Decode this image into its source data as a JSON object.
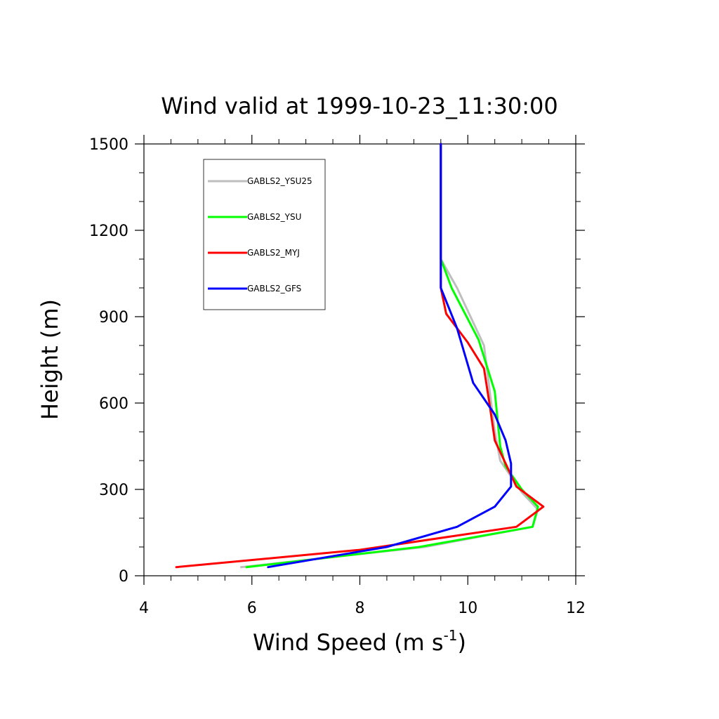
{
  "chart_data": {
    "type": "line",
    "title": "Wind valid at 1999-10-23_11:30:00",
    "xlabel": "Wind Speed (m s",
    "xlabel_superscript": "-1",
    "xlabel_suffix": ")",
    "ylabel": "Height (m)",
    "xlim": [
      4,
      12
    ],
    "ylim": [
      0,
      1500
    ],
    "x_ticks": [
      4,
      6,
      8,
      10,
      12
    ],
    "y_ticks": [
      0,
      300,
      600,
      900,
      1200,
      1500
    ],
    "x_tick_labels": [
      "4",
      "6",
      "8",
      "10",
      "12"
    ],
    "y_tick_labels": [
      "0",
      "300",
      "600",
      "900",
      "1200",
      "1500"
    ],
    "grid": false,
    "legend_position": "top-left",
    "series": [
      {
        "name": "GABLS2_YSU25",
        "color": "#bebebe",
        "points": [
          [
            5.8,
            30
          ],
          [
            9.2,
            100
          ],
          [
            11.2,
            170
          ],
          [
            11.3,
            230
          ],
          [
            11.0,
            290
          ],
          [
            10.6,
            400
          ],
          [
            10.5,
            500
          ],
          [
            10.4,
            650
          ],
          [
            10.3,
            800
          ],
          [
            9.8,
            1000
          ],
          [
            9.5,
            1100
          ],
          [
            9.5,
            1300
          ],
          [
            9.5,
            1500
          ]
        ]
      },
      {
        "name": "GABLS2_YSU",
        "color": "#00ff00",
        "points": [
          [
            5.9,
            30
          ],
          [
            9.1,
            100
          ],
          [
            11.2,
            170
          ],
          [
            11.3,
            240
          ],
          [
            11.0,
            300
          ],
          [
            10.7,
            380
          ],
          [
            10.6,
            450
          ],
          [
            10.5,
            640
          ],
          [
            10.2,
            820
          ],
          [
            9.7,
            1000
          ],
          [
            9.5,
            1100
          ],
          [
            9.5,
            1300
          ],
          [
            9.5,
            1500
          ]
        ]
      },
      {
        "name": "GABLS2_MYJ",
        "color": "#ff0000",
        "points": [
          [
            4.6,
            30
          ],
          [
            8.0,
            90
          ],
          [
            10.9,
            170
          ],
          [
            11.4,
            240
          ],
          [
            10.9,
            310
          ],
          [
            10.7,
            390
          ],
          [
            10.5,
            470
          ],
          [
            10.4,
            600
          ],
          [
            10.3,
            720
          ],
          [
            10.0,
            810
          ],
          [
            9.6,
            910
          ],
          [
            9.5,
            1000
          ],
          [
            9.5,
            1100
          ],
          [
            9.5,
            1300
          ],
          [
            9.5,
            1500
          ]
        ]
      },
      {
        "name": "GABLS2_GFS",
        "color": "#0000ff",
        "points": [
          [
            6.3,
            30
          ],
          [
            8.5,
            100
          ],
          [
            9.8,
            170
          ],
          [
            10.5,
            240
          ],
          [
            10.8,
            310
          ],
          [
            10.8,
            390
          ],
          [
            10.7,
            470
          ],
          [
            10.5,
            560
          ],
          [
            10.1,
            670
          ],
          [
            9.8,
            860
          ],
          [
            9.5,
            1000
          ],
          [
            9.5,
            1100
          ],
          [
            9.5,
            1300
          ],
          [
            9.5,
            1500
          ]
        ]
      }
    ]
  }
}
